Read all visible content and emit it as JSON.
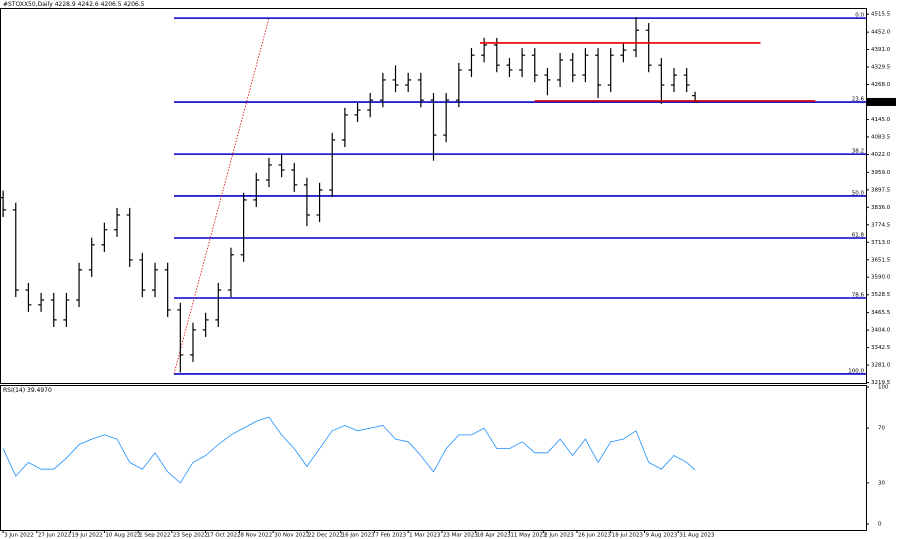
{
  "chart_data": [
    {
      "type": "ohlc",
      "title": "#STOXX50,Daily",
      "x": [
        0,
        6,
        12,
        18,
        24,
        30,
        36,
        42,
        48,
        54,
        60,
        66,
        72,
        78,
        84,
        90,
        96,
        102,
        108,
        114,
        120,
        126,
        132,
        138,
        144,
        150,
        156,
        162,
        168,
        174,
        180,
        186,
        192,
        198,
        204,
        210,
        216,
        222,
        228,
        234,
        240,
        246,
        252,
        258,
        264,
        270,
        276,
        282,
        288,
        294,
        300,
        306,
        312,
        318,
        324,
        328
      ],
      "open": [
        3870,
        3827,
        3545,
        3493,
        3510,
        3440,
        3510,
        3616,
        3704,
        3757,
        3809,
        3651,
        3545,
        3616,
        3475,
        3317,
        3405,
        3440,
        3545,
        3669,
        3862,
        3932,
        3985,
        3967,
        3915,
        3809,
        3897,
        4073,
        4161,
        4178,
        4213,
        4284,
        4266,
        4284,
        4213,
        4090,
        4213,
        4319,
        4371,
        4407,
        4336,
        4319,
        4371,
        4301,
        4284,
        4354,
        4301,
        4371,
        4266,
        4371,
        4389,
        4459,
        4336,
        4266,
        4301,
        4228.9
      ],
      "high": [
        3895,
        3852,
        3570,
        3535,
        3535,
        3535,
        3641,
        3729,
        3782,
        3834,
        3834,
        3676,
        3641,
        3641,
        3500,
        3430,
        3465,
        3570,
        3694,
        3887,
        3957,
        4010,
        4022,
        3992,
        3940,
        3922,
        4098,
        4186,
        4203,
        4238,
        4309,
        4335,
        4309,
        4309,
        4238,
        4238,
        4344,
        4396,
        4432,
        4432,
        4361,
        4396,
        4396,
        4326,
        4379,
        4379,
        4396,
        4396,
        4396,
        4414,
        4505,
        4484,
        4361,
        4326,
        4326,
        4242.6
      ],
      "low": [
        3802,
        3520,
        3468,
        3468,
        3415,
        3415,
        3485,
        3591,
        3679,
        3732,
        3626,
        3520,
        3520,
        3450,
        3255,
        3292,
        3380,
        3415,
        3520,
        3644,
        3837,
        3907,
        3942,
        3890,
        3770,
        3784,
        3872,
        4048,
        4136,
        4153,
        4188,
        4241,
        4241,
        4188,
        4000,
        4065,
        4188,
        4294,
        4346,
        4311,
        4294,
        4294,
        4276,
        4230,
        4259,
        4276,
        4276,
        4220,
        4241,
        4346,
        4364,
        4311,
        4200,
        4241,
        4241,
        4206.5
      ],
      "close": [
        3827,
        3545,
        3493,
        3510,
        3440,
        3510,
        3616,
        3704,
        3757,
        3809,
        3651,
        3545,
        3616,
        3475,
        3317,
        3405,
        3440,
        3545,
        3669,
        3862,
        3932,
        3985,
        3967,
        3915,
        3809,
        3897,
        4073,
        4161,
        4178,
        4213,
        4284,
        4266,
        4284,
        4213,
        4090,
        4213,
        4319,
        4371,
        4407,
        4336,
        4319,
        4371,
        4301,
        4284,
        4354,
        4301,
        4371,
        4266,
        4371,
        4389,
        4459,
        4336,
        4266,
        4301,
        4266,
        4206.5
      ],
      "color": "#000000",
      "xlim": [
        -1,
        409
      ],
      "ylim": [
        3218,
        4537
      ],
      "yticks": [
        4515.5,
        {
          "value": 4452,
          "label": "4452.0"
        },
        {
          "value": 4391,
          "label": "4391.0"
        },
        4329.5,
        {
          "value": 4268,
          "label": "4268.0"
        },
        {
          "value": 4145,
          "label": "4145.0"
        },
        4083.5,
        {
          "value": 4022,
          "label": "4022.0"
        },
        {
          "value": 3959,
          "label": "3959.0"
        },
        3897.5,
        {
          "value": 3836,
          "label": "3836.0"
        },
        3774.5,
        {
          "value": 3713,
          "label": "3713.0"
        },
        3651.5,
        {
          "value": 3590,
          "label": "3590.0"
        },
        3528.5,
        3465.5,
        {
          "value": 3404,
          "label": "3404.0"
        },
        3342.5,
        {
          "value": 3281,
          "label": "3281.0"
        },
        3219.5
      ],
      "last_price": 4206.5,
      "fib_color": "#0000cc",
      "fib_start": 81,
      "fib_levels": [
        {
          "label": "0.0",
          "value": 4501.4
        },
        {
          "label": "23.6",
          "value": 4206
        },
        {
          "label": "38.2",
          "value": 4023
        },
        {
          "label": "50.0",
          "value": 3876
        },
        {
          "label": "61.8",
          "value": 3728
        },
        {
          "label": "78.6",
          "value": 3517
        },
        {
          "label": "100.0",
          "value": 3250
        }
      ],
      "level_color": "#e00000",
      "levels": [
        {
          "x": [
            226,
            359
          ],
          "value": 4414
        },
        {
          "x": [
            252,
            385
          ],
          "value": 4210
        }
      ],
      "trendline": {
        "x": [
          81,
          126
        ],
        "y": [
          3250,
          4501
        ]
      }
    },
    {
      "type": "line",
      "title": "RSI(14)",
      "x": [
        0,
        6,
        12,
        18,
        24,
        30,
        36,
        42,
        48,
        54,
        60,
        66,
        72,
        78,
        84,
        90,
        96,
        102,
        108,
        114,
        120,
        126,
        132,
        138,
        144,
        150,
        156,
        162,
        168,
        174,
        180,
        186,
        192,
        198,
        204,
        210,
        216,
        222,
        228,
        234,
        240,
        246,
        252,
        258,
        264,
        270,
        276,
        282,
        288,
        294,
        300,
        306,
        312,
        318,
        324,
        328
      ],
      "values": [
        55,
        35,
        45,
        40,
        40,
        48,
        58,
        62,
        65,
        62,
        45,
        40,
        52,
        38,
        30,
        45,
        50,
        58,
        65,
        70,
        75,
        78,
        65,
        55,
        42,
        55,
        68,
        72,
        68,
        70,
        72,
        62,
        60,
        50,
        38,
        55,
        65,
        65,
        70,
        55,
        55,
        60,
        52,
        52,
        62,
        50,
        62,
        45,
        60,
        62,
        68,
        45,
        40,
        50,
        45,
        39.497
      ],
      "current": {
        "value": 39.497,
        "label": "39.4970"
      },
      "color": "#1e90ff",
      "xlim": [
        -1,
        409
      ],
      "ylim": [
        0,
        100
      ],
      "yticks": [
        100,
        70,
        30,
        0
      ],
      "xticks": [
        {
          "value": 0,
          "label": "3 Jun 2022"
        },
        {
          "value": 16,
          "label": "27 Jun 2022"
        },
        {
          "value": 32,
          "label": "19 Jul 2022"
        },
        {
          "value": 48,
          "label": "10 Aug 2022"
        },
        {
          "value": 64,
          "label": "1 Sep 2022"
        },
        {
          "value": 80,
          "label": "23 Sep 2022"
        },
        {
          "value": 96,
          "label": "17 Oct 2022"
        },
        {
          "value": 112,
          "label": "8 Nov 2022"
        },
        {
          "value": 128,
          "label": "30 Nov 2022"
        },
        {
          "value": 144,
          "label": "22 Dec 2022"
        },
        {
          "value": 160,
          "label": "16 Jan 2023"
        },
        {
          "value": 176,
          "label": "7 Feb 2023"
        },
        {
          "value": 192,
          "label": "1 Mar 2023"
        },
        {
          "value": 208,
          "label": "23 Mar 2023"
        },
        {
          "value": 224,
          "label": "18 Apr 2023"
        },
        {
          "value": 240,
          "label": "11 May 2023"
        },
        {
          "value": 256,
          "label": "2 Jun 2023"
        },
        {
          "value": 272,
          "label": "26 Jun 2023"
        },
        {
          "value": 288,
          "label": "18 Jul 2023"
        },
        {
          "value": 304,
          "label": "9 Aug 2023"
        },
        {
          "value": 320,
          "label": "31 Aug 2023"
        }
      ]
    }
  ]
}
